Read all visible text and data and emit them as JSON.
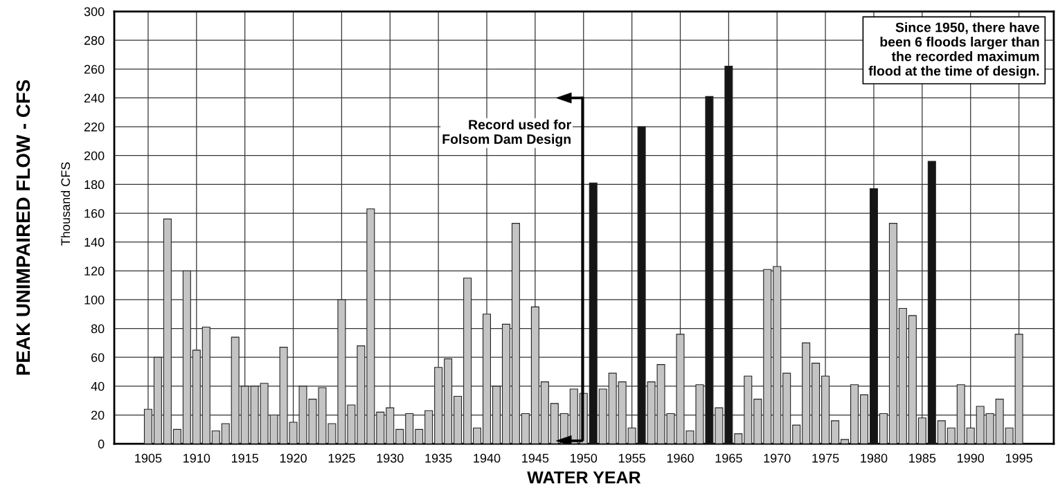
{
  "chart_data": {
    "type": "bar",
    "ylabel": "PEAK UNIMPAIRED FLOW - CFS",
    "subtitle": "Thousand CFS",
    "xlabel": "WATER YEAR",
    "x": [
      1905,
      1906,
      1907,
      1908,
      1909,
      1910,
      1911,
      1912,
      1913,
      1914,
      1915,
      1916,
      1917,
      1918,
      1919,
      1920,
      1921,
      1922,
      1923,
      1924,
      1925,
      1926,
      1927,
      1928,
      1929,
      1930,
      1931,
      1932,
      1933,
      1934,
      1935,
      1936,
      1937,
      1938,
      1939,
      1940,
      1941,
      1942,
      1943,
      1944,
      1945,
      1946,
      1947,
      1948,
      1949,
      1950,
      1951,
      1952,
      1953,
      1954,
      1955,
      1956,
      1957,
      1958,
      1959,
      1960,
      1961,
      1962,
      1963,
      1964,
      1965,
      1966,
      1967,
      1968,
      1969,
      1970,
      1971,
      1972,
      1973,
      1974,
      1975,
      1976,
      1977,
      1978,
      1979,
      1980,
      1981,
      1982,
      1983,
      1984,
      1985,
      1986,
      1987,
      1988,
      1989,
      1990,
      1991,
      1992,
      1993,
      1994,
      1995
    ],
    "values": [
      24,
      60,
      156,
      10,
      120,
      65,
      81,
      9,
      14,
      74,
      40,
      40,
      42,
      20,
      67,
      15,
      40,
      31,
      39,
      14,
      100,
      27,
      68,
      163,
      22,
      25,
      10,
      21,
      10,
      23,
      53,
      59,
      33,
      115,
      11,
      90,
      40,
      83,
      153,
      21,
      95,
      43,
      28,
      21,
      38,
      35,
      181,
      38,
      49,
      43,
      11,
      220,
      43,
      55,
      21,
      76,
      9,
      41,
      241,
      25,
      262,
      7,
      47,
      31,
      121,
      123,
      49,
      13,
      70,
      56,
      47,
      16,
      3,
      41,
      34,
      177,
      21,
      153,
      94,
      89,
      18,
      196,
      16,
      11,
      41,
      11,
      26,
      21,
      31,
      11,
      76
    ],
    "colors": [
      "#c4c4c4",
      "#c4c4c4",
      "#c4c4c4",
      "#c4c4c4",
      "#c4c4c4",
      "#c4c4c4",
      "#c4c4c4",
      "#c4c4c4",
      "#c4c4c4",
      "#c4c4c4",
      "#c4c4c4",
      "#c4c4c4",
      "#c4c4c4",
      "#c4c4c4",
      "#c4c4c4",
      "#c4c4c4",
      "#c4c4c4",
      "#c4c4c4",
      "#c4c4c4",
      "#c4c4c4",
      "#c4c4c4",
      "#c4c4c4",
      "#c4c4c4",
      "#c4c4c4",
      "#c4c4c4",
      "#c4c4c4",
      "#c4c4c4",
      "#c4c4c4",
      "#c4c4c4",
      "#c4c4c4",
      "#c4c4c4",
      "#c4c4c4",
      "#c4c4c4",
      "#c4c4c4",
      "#c4c4c4",
      "#c4c4c4",
      "#c4c4c4",
      "#c4c4c4",
      "#c4c4c4",
      "#c4c4c4",
      "#c4c4c4",
      "#c4c4c4",
      "#c4c4c4",
      "#c4c4c4",
      "#c4c4c4",
      "#c4c4c4",
      "#151515",
      "#c4c4c4",
      "#c4c4c4",
      "#c4c4c4",
      "#c4c4c4",
      "#151515",
      "#c4c4c4",
      "#c4c4c4",
      "#c4c4c4",
      "#c4c4c4",
      "#c4c4c4",
      "#c4c4c4",
      "#151515",
      "#c4c4c4",
      "#151515",
      "#c4c4c4",
      "#c4c4c4",
      "#c4c4c4",
      "#c4c4c4",
      "#c4c4c4",
      "#c4c4c4",
      "#c4c4c4",
      "#c4c4c4",
      "#c4c4c4",
      "#c4c4c4",
      "#c4c4c4",
      "#c4c4c4",
      "#c4c4c4",
      "#c4c4c4",
      "#151515",
      "#c4c4c4",
      "#c4c4c4",
      "#c4c4c4",
      "#c4c4c4",
      "#c4c4c4",
      "#151515",
      "#c4c4c4",
      "#c4c4c4",
      "#c4c4c4",
      "#c4c4c4",
      "#c4c4c4",
      "#c4c4c4",
      "#c4c4c4",
      "#c4c4c4",
      "#c4c4c4"
    ],
    "xlim": [
      1901.5,
      1998.6
    ],
    "xticks": [
      1905,
      1910,
      1915,
      1920,
      1925,
      1930,
      1935,
      1940,
      1945,
      1950,
      1955,
      1960,
      1965,
      1970,
      1975,
      1980,
      1985,
      1990,
      1995
    ],
    "ylim": [
      0,
      300
    ],
    "yticks": [
      0,
      20,
      40,
      60,
      80,
      100,
      120,
      140,
      160,
      180,
      200,
      220,
      240,
      260,
      280,
      300
    ],
    "grid": true,
    "annotations": [
      "Since 1950, there have\nbeen 6 floods larger than\nthe recorded maximum\nflood at the time of design.",
      "Record used for\nFolsom Dam Design"
    ]
  }
}
